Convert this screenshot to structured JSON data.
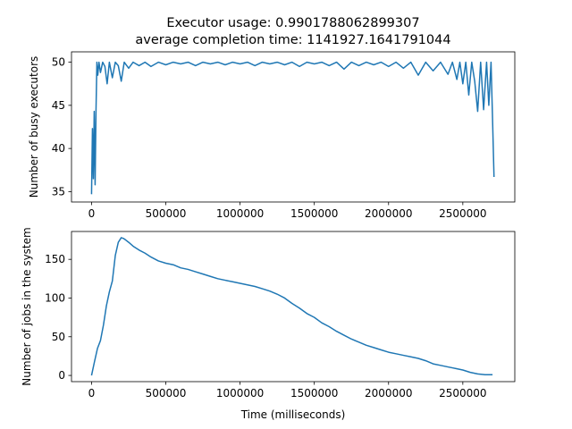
{
  "figure": {
    "title_line1": "Executor usage: 0.9901788062899307",
    "title_line2": "average completion time: 1141927.1641791044"
  },
  "chart_data": [
    {
      "type": "line",
      "title": "",
      "xlabel": "",
      "ylabel": "Number of busy executors",
      "xlim": [
        -135000,
        2850000
      ],
      "ylim": [
        33.8,
        51.2
      ],
      "xticks": [
        0,
        500000,
        1000000,
        1500000,
        2000000,
        2500000
      ],
      "xtick_labels": [
        "0",
        "500000",
        "1000000",
        "1500000",
        "2000000",
        "2500000"
      ],
      "yticks": [
        35,
        40,
        45,
        50
      ],
      "ytick_labels": [
        "35",
        "40",
        "45",
        "50"
      ],
      "grid": false,
      "color": "#1f77b4",
      "series": [
        {
          "x": [
            0,
            6000,
            12000,
            18000,
            24000,
            30000,
            36000,
            42000,
            50000,
            60000,
            75000,
            90000,
            105000,
            120000,
            140000,
            160000,
            180000,
            200000,
            220000,
            250000,
            280000,
            320000,
            360000,
            400000,
            450000,
            500000,
            550000,
            600000,
            650000,
            700000,
            750000,
            800000,
            850000,
            900000,
            950000,
            1000000,
            1050000,
            1100000,
            1150000,
            1200000,
            1250000,
            1300000,
            1350000,
            1400000,
            1450000,
            1500000,
            1550000,
            1600000,
            1650000,
            1700000,
            1750000,
            1800000,
            1850000,
            1900000,
            1950000,
            2000000,
            2050000,
            2100000,
            2150000,
            2200000,
            2250000,
            2300000,
            2350000,
            2400000,
            2430000,
            2460000,
            2480000,
            2500000,
            2520000,
            2540000,
            2560000,
            2580000,
            2600000,
            2620000,
            2640000,
            2660000,
            2675000,
            2690000,
            2700000,
            2710000
          ],
          "y": [
            34.7,
            42.3,
            36.5,
            44.3,
            35.8,
            44.4,
            50,
            48.5,
            50,
            48.8,
            50,
            49.5,
            47.5,
            50,
            48.2,
            50,
            49.6,
            47.8,
            50,
            49.3,
            50,
            49.6,
            50,
            49.5,
            50,
            49.7,
            50,
            49.8,
            50,
            49.6,
            50,
            49.8,
            50,
            49.7,
            50,
            49.8,
            50,
            49.6,
            50,
            49.8,
            50,
            49.7,
            50,
            49.5,
            50,
            49.8,
            50,
            49.6,
            50,
            49.2,
            50,
            49.6,
            50,
            49.7,
            50,
            49.5,
            50,
            49.3,
            50,
            48.5,
            50,
            49.0,
            50,
            48.6,
            50,
            48.0,
            50,
            47.5,
            50,
            46.2,
            50,
            47.8,
            44.3,
            50,
            44.5,
            50,
            45.0,
            50,
            43.5,
            36.7
          ]
        }
      ]
    },
    {
      "type": "line",
      "title": "",
      "xlabel": "Time (milliseconds)",
      "ylabel": "Number of jobs in the system",
      "xlim": [
        -135000,
        2850000
      ],
      "ylim": [
        -8,
        186
      ],
      "xticks": [
        0,
        500000,
        1000000,
        1500000,
        2000000,
        2500000
      ],
      "xtick_labels": [
        "0",
        "500000",
        "1000000",
        "1500000",
        "2000000",
        "2500000"
      ],
      "yticks": [
        0,
        50,
        100,
        150
      ],
      "ytick_labels": [
        "0",
        "50",
        "100",
        "150"
      ],
      "grid": false,
      "color": "#1f77b4",
      "series": [
        {
          "x": [
            0,
            20000,
            40000,
            60000,
            80000,
            100000,
            120000,
            140000,
            160000,
            180000,
            200000,
            215000,
            230000,
            250000,
            280000,
            320000,
            360000,
            400000,
            450000,
            500000,
            550000,
            600000,
            650000,
            700000,
            750000,
            800000,
            850000,
            900000,
            950000,
            1000000,
            1050000,
            1100000,
            1150000,
            1200000,
            1250000,
            1300000,
            1350000,
            1400000,
            1450000,
            1500000,
            1550000,
            1600000,
            1650000,
            1700000,
            1750000,
            1800000,
            1850000,
            1900000,
            1950000,
            2000000,
            2050000,
            2100000,
            2150000,
            2200000,
            2250000,
            2300000,
            2350000,
            2400000,
            2450000,
            2500000,
            2550000,
            2600000,
            2650000,
            2700000
          ],
          "y": [
            0,
            18,
            35,
            45,
            65,
            90,
            108,
            122,
            155,
            172,
            178,
            177,
            175,
            172,
            167,
            162,
            158,
            153,
            148,
            145,
            143,
            139,
            137,
            134,
            131,
            128,
            125,
            123,
            121,
            119,
            117,
            115,
            112,
            109,
            105,
            100,
            93,
            87,
            80,
            75,
            68,
            63,
            57,
            52,
            47,
            43,
            39,
            36,
            33,
            30,
            28,
            26,
            24,
            22,
            19,
            15,
            13,
            11,
            9,
            7,
            4,
            2,
            1,
            1
          ]
        }
      ]
    }
  ]
}
